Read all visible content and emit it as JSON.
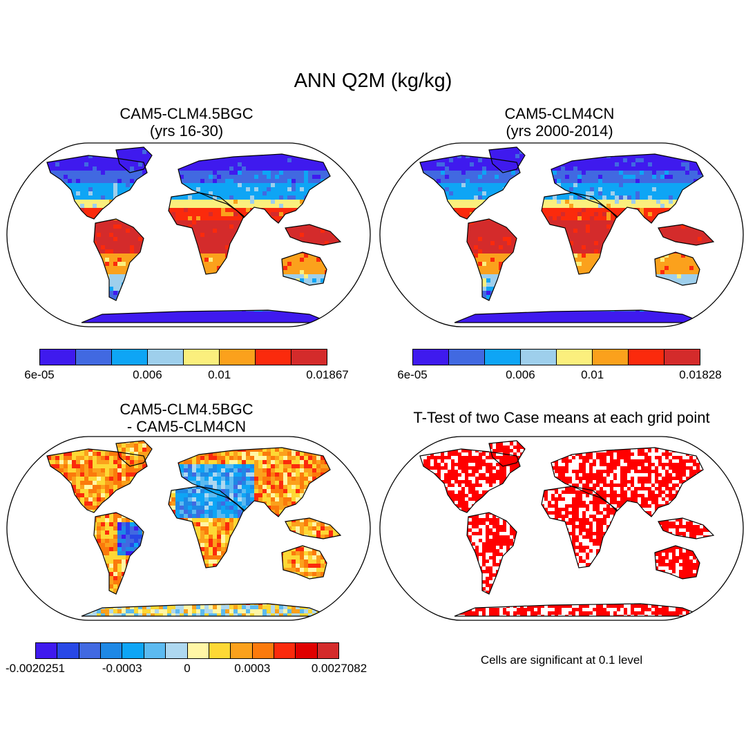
{
  "figure": {
    "title": "ANN Q2M (kg/kg)",
    "note": "Cells are significant at 0.1 level"
  },
  "panels": [
    {
      "id": "case1",
      "title_line1": "CAM5-CLM4.5BGC",
      "title_line2": "(yrs 16-30)",
      "colorbar": {
        "colors": [
          "#3f1aee",
          "#4169e1",
          "#0ea5f5",
          "#9ecfec",
          "#fbef7d",
          "#fba11c",
          "#fb2a0c",
          "#d42b2b"
        ],
        "ticks": [
          {
            "label": "6e-05",
            "index": 0
          },
          {
            "label": "0.006",
            "index": 3
          },
          {
            "label": "0.01",
            "index": 5
          },
          {
            "label": "0.01867",
            "index": 8
          }
        ]
      }
    },
    {
      "id": "case2",
      "title_line1": "CAM5-CLM4CN",
      "title_line2": "(yrs 2000-2014)",
      "colorbar": {
        "colors": [
          "#3f1aee",
          "#4169e1",
          "#0ea5f5",
          "#9ecfec",
          "#fbef7d",
          "#fba11c",
          "#fb2a0c",
          "#d42b2b"
        ],
        "ticks": [
          {
            "label": "6e-05",
            "index": 0
          },
          {
            "label": "0.006",
            "index": 3
          },
          {
            "label": "0.01",
            "index": 5
          },
          {
            "label": "0.01828",
            "index": 8
          }
        ]
      }
    },
    {
      "id": "difference",
      "title_line1": "CAM5-CLM4.5BGC",
      "title_line2": "- CAM5-CLM4CN",
      "colorbar": {
        "colors": [
          "#3f1aee",
          "#2848e6",
          "#4169e1",
          "#1e88e5",
          "#0ea5f5",
          "#5cbaf0",
          "#aed8f0",
          "#fff6a6",
          "#fdd835",
          "#fba11c",
          "#fb7a0c",
          "#fb2a0c",
          "#e00000",
          "#d42b2b"
        ],
        "ticks": [
          {
            "label": "-0.0020251",
            "index": 0
          },
          {
            "label": "-0.0003",
            "index": 4
          },
          {
            "label": "0",
            "index": 7
          },
          {
            "label": "0.0003",
            "index": 10
          },
          {
            "label": "0.0027082",
            "index": 14
          }
        ]
      }
    },
    {
      "id": "ttest",
      "title_line1": "T-Test of two Case means at each grid point",
      "significant_color": "#ff0000"
    }
  ]
}
